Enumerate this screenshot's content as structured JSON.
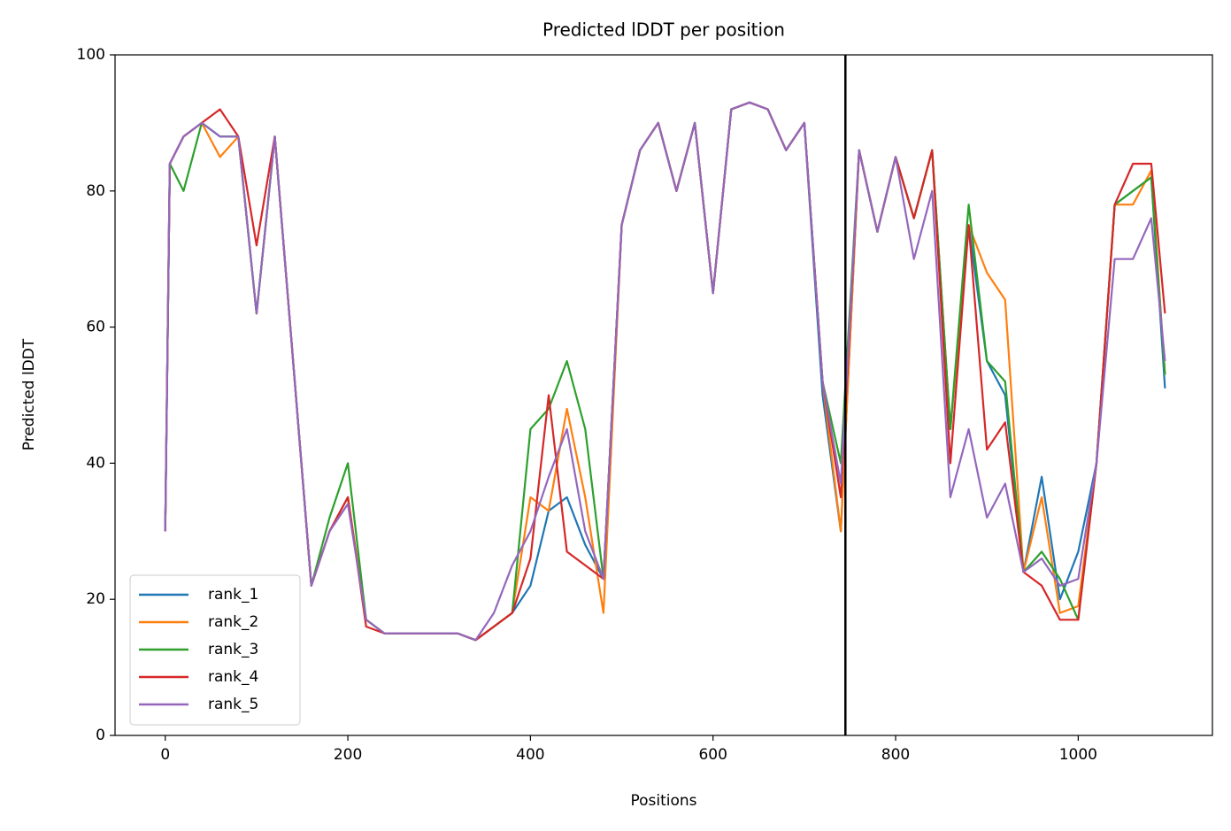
{
  "chart_data": {
    "type": "line",
    "title": "Predicted lDDT per position",
    "x_label": "Positions",
    "y_label": "Predicted lDDT",
    "x": [
      0,
      5,
      20,
      40,
      60,
      80,
      100,
      120,
      140,
      160,
      180,
      200,
      220,
      240,
      260,
      280,
      300,
      320,
      340,
      360,
      380,
      400,
      420,
      440,
      460,
      480,
      500,
      520,
      540,
      560,
      580,
      600,
      620,
      640,
      660,
      680,
      700,
      720,
      740,
      760,
      780,
      800,
      820,
      840,
      860,
      880,
      900,
      920,
      940,
      960,
      980,
      1000,
      1020,
      1040,
      1060,
      1080,
      1095
    ],
    "series": [
      {
        "name": "rank_1",
        "color": "#1f77b4",
        "values": [
          30,
          84,
          88,
          90,
          88,
          88,
          62,
          88,
          55,
          22,
          30,
          35,
          17,
          15,
          15,
          15,
          15,
          15,
          14,
          16,
          18,
          22,
          33,
          35,
          28,
          23,
          75,
          86,
          90,
          80,
          90,
          65,
          92,
          93,
          92,
          86,
          90,
          50,
          30,
          86,
          74,
          85,
          76,
          86,
          45,
          75,
          55,
          50,
          24,
          38,
          20,
          27,
          40,
          78,
          80,
          82,
          51
        ]
      },
      {
        "name": "rank_2",
        "color": "#ff7f0e",
        "values": [
          30,
          84,
          88,
          90,
          85,
          88,
          62,
          88,
          55,
          22,
          30,
          35,
          17,
          15,
          15,
          15,
          15,
          15,
          14,
          16,
          18,
          35,
          33,
          48,
          35,
          18,
          75,
          86,
          90,
          80,
          90,
          65,
          92,
          93,
          92,
          86,
          90,
          52,
          30,
          86,
          74,
          85,
          76,
          86,
          45,
          75,
          68,
          64,
          24,
          35,
          18,
          19,
          40,
          78,
          78,
          83,
          53
        ]
      },
      {
        "name": "rank_3",
        "color": "#2ca02c",
        "values": [
          30,
          84,
          80,
          90,
          88,
          88,
          62,
          88,
          55,
          22,
          32,
          40,
          17,
          15,
          15,
          15,
          15,
          15,
          14,
          16,
          18,
          45,
          48,
          55,
          45,
          23,
          75,
          86,
          90,
          80,
          90,
          65,
          92,
          93,
          92,
          86,
          90,
          52,
          40,
          86,
          74,
          85,
          76,
          86,
          45,
          78,
          55,
          52,
          24,
          27,
          23,
          17,
          40,
          78,
          80,
          82,
          53
        ]
      },
      {
        "name": "rank_4",
        "color": "#d62728",
        "values": [
          30,
          84,
          88,
          90,
          92,
          88,
          72,
          88,
          55,
          22,
          30,
          35,
          16,
          15,
          15,
          15,
          15,
          15,
          14,
          16,
          18,
          26,
          50,
          27,
          25,
          23,
          75,
          86,
          90,
          80,
          90,
          65,
          92,
          93,
          92,
          86,
          90,
          52,
          35,
          86,
          74,
          85,
          76,
          86,
          40,
          75,
          42,
          46,
          24,
          22,
          17,
          17,
          40,
          78,
          84,
          84,
          62
        ]
      },
      {
        "name": "rank_5",
        "color": "#9467bd",
        "values": [
          30,
          84,
          88,
          90,
          88,
          88,
          62,
          88,
          55,
          22,
          30,
          34,
          17,
          15,
          15,
          15,
          15,
          15,
          14,
          18,
          25,
          30,
          38,
          45,
          30,
          23,
          75,
          86,
          90,
          80,
          90,
          65,
          92,
          93,
          92,
          86,
          90,
          52,
          37,
          86,
          74,
          85,
          70,
          80,
          35,
          45,
          32,
          37,
          24,
          26,
          22,
          23,
          40,
          70,
          70,
          76,
          55
        ]
      }
    ],
    "xlim": [
      -55,
      1147
    ],
    "ylim": [
      0,
      100
    ],
    "xticks": [
      0,
      200,
      400,
      600,
      800,
      1000
    ],
    "yticks": [
      0,
      20,
      40,
      60,
      80,
      100
    ],
    "vline": 745,
    "grid": false,
    "legend": "lower left"
  }
}
